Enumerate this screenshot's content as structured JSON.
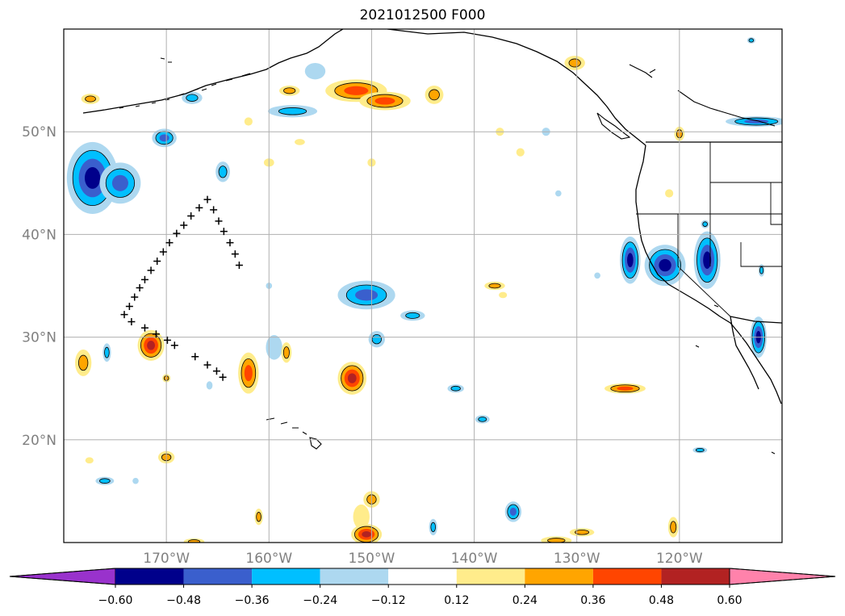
{
  "title": "2021012500 F000",
  "map": {
    "lon_range": [
      -180,
      -110
    ],
    "lat_range": [
      10,
      60
    ],
    "lat_ticks": [
      {
        "value": 20,
        "label": "20°N"
      },
      {
        "value": 30,
        "label": "30°N"
      },
      {
        "value": 40,
        "label": "40°N"
      },
      {
        "value": 50,
        "label": "50°N"
      }
    ],
    "lon_ticks": [
      {
        "value": -170,
        "label": "170°W"
      },
      {
        "value": -160,
        "label": "160°W"
      },
      {
        "value": -150,
        "label": "150°W"
      },
      {
        "value": -140,
        "label": "140°W"
      },
      {
        "value": -130,
        "label": "130°W"
      },
      {
        "value": -120,
        "label": "120°W"
      }
    ],
    "grid": true
  },
  "colorbar": {
    "ticks": [
      "−0.60",
      "−0.48",
      "−0.36",
      "−0.24",
      "−0.12",
      "0.12",
      "0.24",
      "0.36",
      "0.48",
      "0.60"
    ],
    "colors": [
      "#9932cc",
      "#00008b",
      "#3a5fcd",
      "#00bfff",
      "#add8f0",
      "#ffffff",
      "#ffec8b",
      "#ffa500",
      "#ff4500",
      "#b22222",
      "#ff82ab"
    ],
    "extend": "both"
  },
  "track_points": [
    [
      -174.1,
      32.2
    ],
    [
      -173.6,
      33.0
    ],
    [
      -173.1,
      33.9
    ],
    [
      -172.6,
      34.8
    ],
    [
      -172.1,
      35.6
    ],
    [
      -171.5,
      36.5
    ],
    [
      -170.9,
      37.4
    ],
    [
      -170.3,
      38.3
    ],
    [
      -169.7,
      39.2
    ],
    [
      -169.0,
      40.1
    ],
    [
      -168.3,
      40.9
    ],
    [
      -167.6,
      41.8
    ],
    [
      -166.8,
      42.6
    ],
    [
      -166.0,
      43.4
    ],
    [
      -165.4,
      42.4
    ],
    [
      -164.9,
      41.3
    ],
    [
      -164.4,
      40.3
    ],
    [
      -163.8,
      39.2
    ],
    [
      -163.3,
      38.1
    ],
    [
      -162.9,
      37.0
    ],
    [
      -173.4,
      31.5
    ],
    [
      -172.1,
      30.9
    ],
    [
      -171.0,
      30.3
    ],
    [
      -169.9,
      29.7
    ],
    [
      -169.2,
      29.2
    ],
    [
      -167.2,
      28.1
    ],
    [
      -166.0,
      27.3
    ],
    [
      -165.1,
      26.7
    ],
    [
      -164.5,
      26.1
    ]
  ],
  "features": [
    {
      "lon": -177.2,
      "lat": 45.5,
      "rx": 2.5,
      "ry": 3.5,
      "v": -0.48
    },
    {
      "lon": -174.5,
      "lat": 45.0,
      "rx": 2.0,
      "ry": 2.0,
      "v": -0.36
    },
    {
      "lon": -170.2,
      "lat": 49.4,
      "rx": 1.2,
      "ry": 0.9,
      "v": -0.36
    },
    {
      "lon": -167.5,
      "lat": 53.3,
      "rx": 1.0,
      "ry": 0.6,
      "v": -0.24
    },
    {
      "lon": -164.5,
      "lat": 46.1,
      "rx": 0.7,
      "ry": 1.0,
      "v": -0.24
    },
    {
      "lon": -157.7,
      "lat": 52.0,
      "rx": 2.4,
      "ry": 0.6,
      "v": -0.24
    },
    {
      "lon": -155.5,
      "lat": 55.9,
      "rx": 1.0,
      "ry": 0.8,
      "v": -0.12
    },
    {
      "lon": -150.5,
      "lat": 34.1,
      "rx": 2.8,
      "ry": 1.4,
      "v": -0.36
    },
    {
      "lon": -146.0,
      "lat": 32.1,
      "rx": 1.2,
      "ry": 0.5,
      "v": -0.24
    },
    {
      "lon": -149.5,
      "lat": 29.8,
      "rx": 0.8,
      "ry": 0.8,
      "v": -0.24
    },
    {
      "lon": -141.8,
      "lat": 25.0,
      "rx": 0.8,
      "ry": 0.4,
      "v": -0.24
    },
    {
      "lon": -139.2,
      "lat": 22.0,
      "rx": 0.7,
      "ry": 0.4,
      "v": -0.24
    },
    {
      "lon": -136.2,
      "lat": 13.0,
      "rx": 0.8,
      "ry": 1.0,
      "v": -0.36
    },
    {
      "lon": -144.0,
      "lat": 11.5,
      "rx": 0.4,
      "ry": 0.8,
      "v": -0.24
    },
    {
      "lon": -176.0,
      "lat": 16.0,
      "rx": 0.9,
      "ry": 0.4,
      "v": -0.24
    },
    {
      "lon": -173.0,
      "lat": 16.0,
      "rx": 0.3,
      "ry": 0.3,
      "v": -0.12
    },
    {
      "lon": -175.8,
      "lat": 28.5,
      "rx": 0.4,
      "ry": 0.9,
      "v": -0.24
    },
    {
      "lon": -165.8,
      "lat": 25.3,
      "rx": 0.3,
      "ry": 0.4,
      "v": -0.12
    },
    {
      "lon": -159.5,
      "lat": 29.0,
      "rx": 0.8,
      "ry": 1.2,
      "v": -0.12
    },
    {
      "lon": -160.0,
      "lat": 35.0,
      "rx": 0.3,
      "ry": 0.3,
      "v": -0.12
    },
    {
      "lon": -133.0,
      "lat": 50.0,
      "rx": 0.4,
      "ry": 0.4,
      "v": -0.12
    },
    {
      "lon": -131.8,
      "lat": 44.0,
      "rx": 0.3,
      "ry": 0.3,
      "v": -0.12
    },
    {
      "lon": -128.0,
      "lat": 36.0,
      "rx": 0.3,
      "ry": 0.3,
      "v": -0.12
    },
    {
      "lon": -124.8,
      "lat": 37.5,
      "rx": 1.0,
      "ry": 2.3,
      "v": -0.48
    },
    {
      "lon": -121.4,
      "lat": 37.0,
      "rx": 2.0,
      "ry": 2.0,
      "v": -0.48
    },
    {
      "lon": -117.3,
      "lat": 37.5,
      "rx": 1.3,
      "ry": 2.8,
      "v": -0.48
    },
    {
      "lon": -117.5,
      "lat": 41.0,
      "rx": 0.4,
      "ry": 0.4,
      "v": -0.24
    },
    {
      "lon": -112.0,
      "lat": 36.5,
      "rx": 0.3,
      "ry": 0.6,
      "v": -0.24
    },
    {
      "lon": -112.3,
      "lat": 30.0,
      "rx": 0.8,
      "ry": 2.0,
      "v": -0.48
    },
    {
      "lon": -118.0,
      "lat": 19.0,
      "rx": 0.7,
      "ry": 0.3,
      "v": -0.24
    },
    {
      "lon": -112.5,
      "lat": 51.0,
      "rx": 3.0,
      "ry": 0.5,
      "v": -0.36
    },
    {
      "lon": -113.0,
      "lat": 58.9,
      "rx": 0.4,
      "ry": 0.3,
      "v": -0.24
    },
    {
      "lon": -178.1,
      "lat": 27.5,
      "rx": 0.8,
      "ry": 1.3,
      "v": 0.24
    },
    {
      "lon": -171.5,
      "lat": 29.2,
      "rx": 1.3,
      "ry": 1.5,
      "v": 0.48
    },
    {
      "lon": -170.0,
      "lat": 26.0,
      "rx": 0.4,
      "ry": 0.4,
      "v": 0.24
    },
    {
      "lon": -170.0,
      "lat": 18.3,
      "rx": 0.8,
      "ry": 0.6,
      "v": 0.24
    },
    {
      "lon": -177.5,
      "lat": 18.0,
      "rx": 0.4,
      "ry": 0.3,
      "v": 0.12
    },
    {
      "lon": -162.0,
      "lat": 26.5,
      "rx": 1.0,
      "ry": 2.0,
      "v": 0.36
    },
    {
      "lon": -158.3,
      "lat": 28.5,
      "rx": 0.5,
      "ry": 1.0,
      "v": 0.24
    },
    {
      "lon": -151.9,
      "lat": 26.0,
      "rx": 1.4,
      "ry": 1.6,
      "v": 0.48
    },
    {
      "lon": -150.0,
      "lat": 14.2,
      "rx": 0.8,
      "ry": 0.8,
      "v": 0.24
    },
    {
      "lon": -151.0,
      "lat": 12.5,
      "rx": 0.8,
      "ry": 1.2,
      "v": 0.12
    },
    {
      "lon": -150.5,
      "lat": 10.8,
      "rx": 1.5,
      "ry": 1.0,
      "v": 0.48
    },
    {
      "lon": -161.0,
      "lat": 12.5,
      "rx": 0.4,
      "ry": 0.8,
      "v": 0.24
    },
    {
      "lon": -138.0,
      "lat": 35.0,
      "rx": 1.0,
      "ry": 0.4,
      "v": 0.24
    },
    {
      "lon": -137.2,
      "lat": 34.1,
      "rx": 0.4,
      "ry": 0.3,
      "v": 0.12
    },
    {
      "lon": -125.3,
      "lat": 25.0,
      "rx": 2.0,
      "ry": 0.5,
      "v": 0.36
    },
    {
      "lon": -129.5,
      "lat": 11.0,
      "rx": 1.2,
      "ry": 0.4,
      "v": 0.24
    },
    {
      "lon": -132.0,
      "lat": 10.2,
      "rx": 1.5,
      "ry": 0.4,
      "v": 0.24
    },
    {
      "lon": -120.6,
      "lat": 11.5,
      "rx": 0.5,
      "ry": 1.0,
      "v": 0.24
    },
    {
      "lon": -167.3,
      "lat": 10.1,
      "rx": 1.0,
      "ry": 0.3,
      "v": 0.24
    },
    {
      "lon": -151.5,
      "lat": 54.0,
      "rx": 3.0,
      "ry": 1.1,
      "v": 0.36
    },
    {
      "lon": -148.7,
      "lat": 53.0,
      "rx": 2.5,
      "ry": 0.9,
      "v": 0.36
    },
    {
      "lon": -143.9,
      "lat": 53.6,
      "rx": 0.9,
      "ry": 0.9,
      "v": 0.24
    },
    {
      "lon": -158.0,
      "lat": 54.0,
      "rx": 1.0,
      "ry": 0.5,
      "v": 0.24
    },
    {
      "lon": -130.2,
      "lat": 56.7,
      "rx": 1.0,
      "ry": 0.7,
      "v": 0.24
    },
    {
      "lon": -177.4,
      "lat": 53.2,
      "rx": 0.9,
      "ry": 0.5,
      "v": 0.24
    },
    {
      "lon": -162.0,
      "lat": 51.0,
      "rx": 0.4,
      "ry": 0.4,
      "v": 0.12
    },
    {
      "lon": -160.0,
      "lat": 47.0,
      "rx": 0.5,
      "ry": 0.4,
      "v": 0.12
    },
    {
      "lon": -157.0,
      "lat": 49.0,
      "rx": 0.5,
      "ry": 0.3,
      "v": 0.12
    },
    {
      "lon": -150.0,
      "lat": 47.0,
      "rx": 0.4,
      "ry": 0.4,
      "v": 0.12
    },
    {
      "lon": -137.5,
      "lat": 50.0,
      "rx": 0.4,
      "ry": 0.4,
      "v": 0.12
    },
    {
      "lon": -135.5,
      "lat": 48.0,
      "rx": 0.4,
      "ry": 0.4,
      "v": 0.12
    },
    {
      "lon": -120.0,
      "lat": 49.8,
      "rx": 0.5,
      "ry": 0.7,
      "v": 0.24
    },
    {
      "lon": -121.0,
      "lat": 44.0,
      "rx": 0.4,
      "ry": 0.4,
      "v": 0.12
    }
  ]
}
